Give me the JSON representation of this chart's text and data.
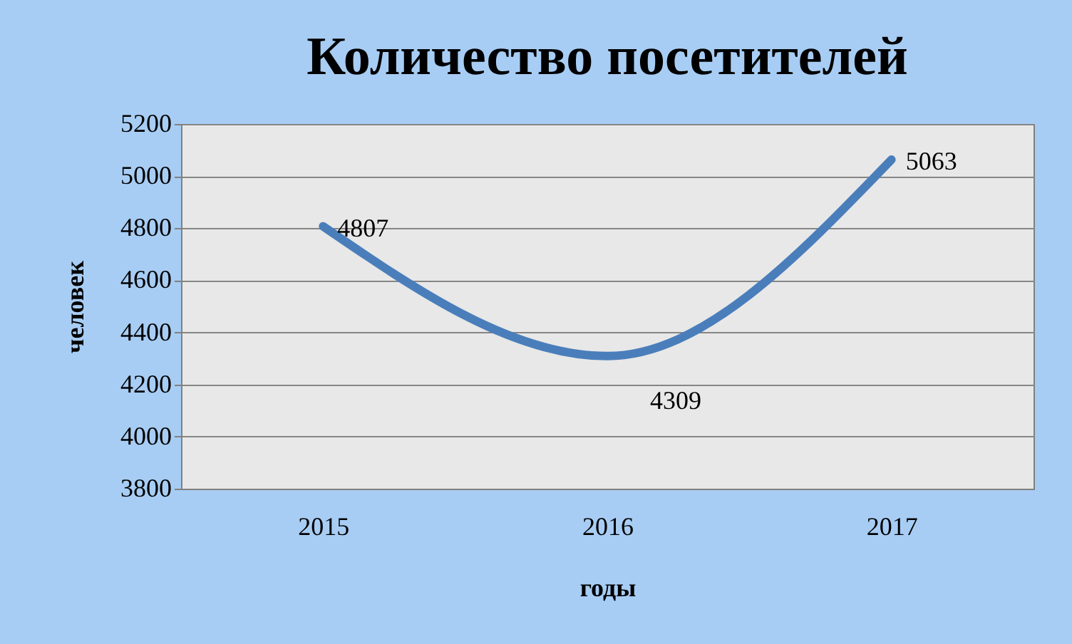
{
  "chart_data": {
    "type": "line",
    "title": "Количество посетителей",
    "xlabel": "годы",
    "ylabel": "человек",
    "categories": [
      "2015",
      "2016",
      "2017"
    ],
    "series": [
      {
        "color": "#4a7ebb",
        "values": [
          4807,
          4309,
          5063
        ]
      }
    ],
    "ylim": [
      3800,
      5200
    ],
    "yticks": [
      3800,
      4000,
      4200,
      4400,
      4600,
      4800,
      5000,
      5200
    ],
    "grid": "y",
    "data_labels": true,
    "marker": "none",
    "line_style": "solid"
  }
}
